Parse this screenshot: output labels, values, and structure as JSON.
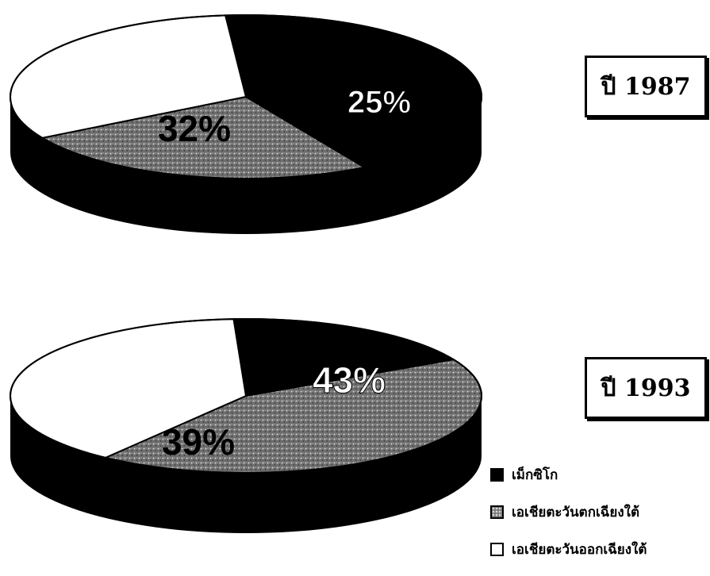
{
  "chart_data": [
    {
      "type": "pie",
      "year_label": "ปี 1987",
      "slices": [
        {
          "name": "เม็กซิโก",
          "value": 43,
          "label": "",
          "color": "#000000"
        },
        {
          "name": "เอเชียตะวันตกเฉียงใต้",
          "value": 25,
          "label": "25%",
          "color": "#7a7a7a"
        },
        {
          "name": "เอเชียตะวันออกเฉียงใต้",
          "value": 32,
          "label": "32%",
          "color": "#ffffff"
        }
      ]
    },
    {
      "type": "pie",
      "year_label": "ปี 1993",
      "slices": [
        {
          "name": "เม็กซิโก",
          "value": 18,
          "label": "",
          "color": "#000000"
        },
        {
          "name": "เอเชียตะวันตกเฉียงใต้",
          "value": 43,
          "label": "43%",
          "color": "#7a7a7a"
        },
        {
          "name": "เอเชียตะวันออกเฉียงใต้",
          "value": 39,
          "label": "39%",
          "color": "#ffffff"
        }
      ]
    }
  ],
  "legend": [
    {
      "label": "เม็กซิโก",
      "swatch": "black"
    },
    {
      "label": "เอเชียตะวันตกเฉียงใต้",
      "swatch": "gray"
    },
    {
      "label": "เอเชียตะวันออกเฉียงใต้",
      "swatch": "white"
    }
  ]
}
